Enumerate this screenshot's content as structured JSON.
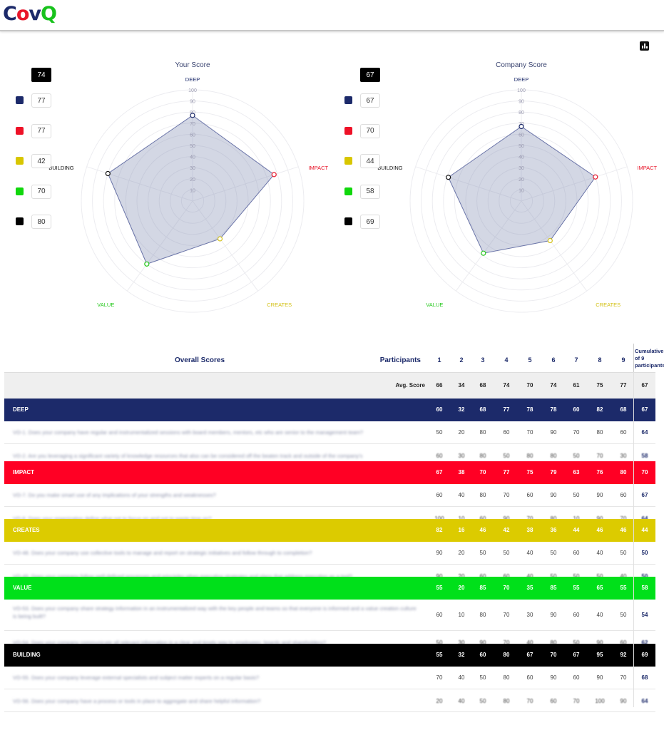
{
  "logo": {
    "c": "C",
    "o": "o",
    "v": "v",
    "q": "Q"
  },
  "charts": [
    {
      "title": "Your Score",
      "total": "74",
      "axis_labels": [
        "DEEP",
        "IMPACT",
        "CREATES",
        "VALUE",
        "BUILDING"
      ],
      "axis_colors": [
        "#1c2a6a",
        "#e8162a",
        "#d4c21a",
        "#26c81e",
        "#111111"
      ],
      "values": [
        77,
        77,
        42,
        70,
        80
      ],
      "legend": [
        {
          "color": "#1c2a6a",
          "value": "77"
        },
        {
          "color": "#ee1127",
          "value": "77"
        },
        {
          "color": "#d8c600",
          "value": "42"
        },
        {
          "color": "#10d70c",
          "value": "70"
        },
        {
          "color": "#000000",
          "value": "80"
        }
      ]
    },
    {
      "title": "Company Score",
      "total": "67",
      "axis_labels": [
        "DEEP",
        "IMPACT",
        "CREATES",
        "VALUE",
        "BUILDING"
      ],
      "axis_colors": [
        "#1c2a6a",
        "#e8162a",
        "#d4c21a",
        "#26c81e",
        "#111111"
      ],
      "values": [
        67,
        70,
        44,
        58,
        69
      ],
      "legend": [
        {
          "color": "#1c2a6a",
          "value": "67"
        },
        {
          "color": "#ee1127",
          "value": "70"
        },
        {
          "color": "#d8c600",
          "value": "44"
        },
        {
          "color": "#10d70c",
          "value": "58"
        },
        {
          "color": "#000000",
          "value": "69"
        }
      ]
    }
  ],
  "radar_ticks": [
    "10",
    "20",
    "30",
    "40",
    "50",
    "60",
    "70",
    "80",
    "90",
    "100"
  ],
  "table": {
    "title": "Overall Scores",
    "participants_label": "Participants",
    "columns": [
      "1",
      "2",
      "3",
      "4",
      "5",
      "6",
      "7",
      "8",
      "9"
    ],
    "cumulative_label": "Cumulative of 9 participants",
    "avg": {
      "label": "Avg. Score",
      "values": [
        "66",
        "34",
        "68",
        "74",
        "70",
        "74",
        "61",
        "75",
        "77"
      ],
      "cumulative": "67"
    },
    "sections": [
      {
        "name": "DEEP",
        "bg": "#1c2a6a",
        "fg": "#ffffff",
        "values": [
          "60",
          "32",
          "68",
          "77",
          "78",
          "78",
          "60",
          "82",
          "68"
        ],
        "cumulative": "67",
        "questions": [
          {
            "text": "VO-1. Does your company have regular and instrumentalized sessions with board members, mentors, etc who are senior to the management team?",
            "values": [
              "50",
              "20",
              "80",
              "60",
              "70",
              "90",
              "70",
              "80",
              "60"
            ],
            "cumulative": "64"
          },
          {
            "text": "VO-2. Are you leveraging a significant variety of knowledge resources that also can be considered off the beaten track and outside of the company's",
            "values": [
              "60",
              "30",
              "80",
              "50",
              "80",
              "80",
              "50",
              "70",
              "30"
            ],
            "cumulative": "58"
          }
        ]
      },
      {
        "name": "IMPACT",
        "bg": "#ff0024",
        "fg": "#ffffff",
        "values": [
          "67",
          "38",
          "70",
          "77",
          "75",
          "79",
          "63",
          "76",
          "80"
        ],
        "cumulative": "70",
        "questions": [
          {
            "text": "VO-7. Do you make smart use of any implications of your strengths and weaknesses?",
            "values": [
              "60",
              "40",
              "80",
              "70",
              "60",
              "90",
              "50",
              "90",
              "60"
            ],
            "cumulative": "67"
          },
          {
            "text": "VO-8. Does your organization define what not to focus on and not to waste time on?",
            "values": [
              "100",
              "10",
              "60",
              "90",
              "70",
              "80",
              "10",
              "90",
              "70"
            ],
            "cumulative": "64"
          }
        ]
      },
      {
        "name": "CREATES",
        "bg": "#dccb00",
        "fg": "#ffffff",
        "values": [
          "82",
          "16",
          "46",
          "42",
          "38",
          "36",
          "44",
          "46",
          "46"
        ],
        "cumulative": "44",
        "questions": [
          {
            "text": "VO-48. Does your company use collective tools to manage and report on strategic initiatives and follow through to completion?",
            "values": [
              "90",
              "20",
              "50",
              "50",
              "40",
              "50",
              "60",
              "40",
              "50"
            ],
            "cumulative": "50"
          },
          {
            "text": "VO-49. Does your company follow well-defined processes and principles when executing strategies and plans that address execution as a tool?",
            "values": [
              "90",
              "20",
              "60",
              "60",
              "40",
              "50",
              "50",
              "50",
              "40"
            ],
            "cumulative": "50"
          }
        ]
      },
      {
        "name": "VALUE",
        "bg": "#00e01a",
        "fg": "#ffffff",
        "values": [
          "55",
          "20",
          "85",
          "70",
          "35",
          "85",
          "55",
          "65",
          "55"
        ],
        "cumulative": "58",
        "questions": [
          {
            "text": "VO-53. Does your company share strategy information in an instrumentalized way with the key people and teams so that everyone is informed and a value creation culture is being built?",
            "values": [
              "60",
              "10",
              "80",
              "70",
              "30",
              "90",
              "60",
              "40",
              "50"
            ],
            "cumulative": "54"
          },
          {
            "text": "VO-54. Does your company communicate all relevant information in a clear and timely way to employees, boards and shareholders?",
            "values": [
              "50",
              "30",
              "90",
              "70",
              "40",
              "80",
              "50",
              "90",
              "60"
            ],
            "cumulative": "62"
          }
        ]
      },
      {
        "name": "BUILDING",
        "bg": "#000000",
        "fg": "#ffffff",
        "values": [
          "55",
          "32",
          "60",
          "80",
          "67",
          "70",
          "67",
          "95",
          "92"
        ],
        "cumulative": "69",
        "questions": [
          {
            "text": "VO-55. Does your company leverage external specialists and subject matter experts on a regular basis?",
            "values": [
              "70",
              "40",
              "50",
              "80",
              "60",
              "90",
              "60",
              "90",
              "70"
            ],
            "cumulative": "68"
          },
          {
            "text": "VO-56. Does your company have a process or tools in place to aggregate and share helpful information?",
            "values": [
              "20",
              "40",
              "50",
              "80",
              "70",
              "60",
              "70",
              "100",
              "90"
            ],
            "cumulative": "64"
          }
        ]
      }
    ]
  }
}
